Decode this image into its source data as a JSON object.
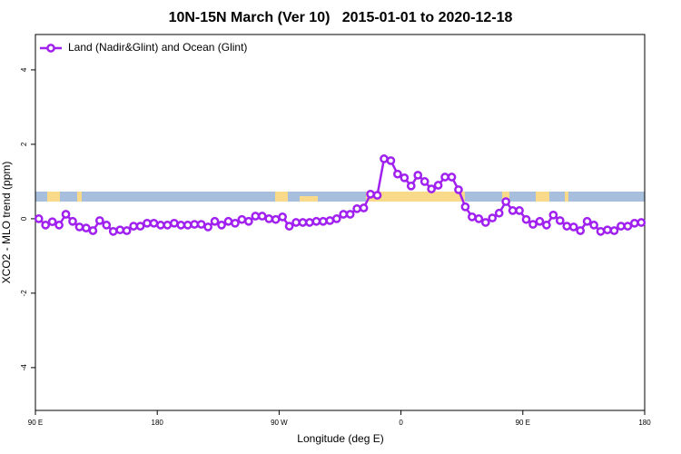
{
  "chart_data": {
    "type": "line",
    "title": "10N-15N March (Ver 10)   2015-01-01 to 2020-12-18",
    "x_label": "Longitude (deg E)",
    "y_label": "XCO2 - MLO trend (ppm)",
    "xlim": [
      90,
      540
    ],
    "xticks": [
      {
        "value": 90,
        "label": "90 E"
      },
      180,
      {
        "value": 270,
        "label": "90 W"
      },
      {
        "value": 360,
        "label": "0"
      },
      {
        "value": 450,
        "label": "90 E"
      },
      {
        "value": 540,
        "label": "180"
      }
    ],
    "ylim": [
      -5.15,
      4.95
    ],
    "yticks": [
      -4,
      -2,
      0,
      2,
      4
    ],
    "legend": "top-left",
    "x": [
      92.5,
      97.5,
      102.5,
      107.5,
      112.5,
      117.5,
      122.5,
      127.5,
      132.5,
      137.5,
      142.5,
      147.5,
      152.5,
      157.5,
      162.5,
      167.5,
      172.5,
      177.5,
      182.5,
      187.5,
      192.5,
      197.5,
      202.5,
      207.5,
      212.5,
      217.5,
      222.5,
      227.5,
      232.5,
      237.5,
      242.5,
      247.5,
      252.5,
      257.5,
      262.5,
      267.5,
      272.5,
      277.5,
      282.5,
      287.5,
      292.5,
      297.5,
      302.5,
      307.5,
      312.5,
      317.5,
      322.5,
      327.5,
      332.5,
      337.5,
      342.5,
      347.5,
      352.5,
      357.5,
      362.5,
      367.5,
      372.5,
      377.5,
      382.5,
      387.5,
      392.5,
      397.5,
      402.5,
      407.5,
      412.5,
      417.5,
      422.5,
      427.5,
      432.5,
      437.5,
      442.5,
      447.5,
      452.5,
      457.5,
      462.5,
      467.5,
      472.5,
      477.5,
      482.5,
      487.5,
      492.5,
      497.5,
      502.5,
      507.5,
      512.5,
      517.5,
      522.5,
      527.5,
      532.5,
      537.5
    ],
    "series": [
      {
        "name": "Land (Nadir&Glint) and Ocean (Glint)",
        "color": "#a020f0",
        "values": [
          0.0,
          -0.17,
          -0.08,
          -0.17,
          0.12,
          -0.07,
          -0.22,
          -0.25,
          -0.32,
          -0.05,
          -0.17,
          -0.34,
          -0.3,
          -0.32,
          -0.2,
          -0.2,
          -0.12,
          -0.12,
          -0.17,
          -0.17,
          -0.12,
          -0.17,
          -0.17,
          -0.15,
          -0.15,
          -0.22,
          -0.07,
          -0.17,
          -0.07,
          -0.12,
          -0.02,
          -0.07,
          0.07,
          0.07,
          0,
          -0.02,
          0.05,
          -0.2,
          -0.1,
          -0.1,
          -0.1,
          -0.07,
          -0.07,
          -0.05,
          0,
          0.12,
          0.12,
          0.27,
          0.29,
          0.66,
          0.63,
          1.61,
          1.56,
          1.2,
          1.1,
          0.88,
          1.17,
          1.0,
          0.8,
          0.9,
          1.12,
          1.12,
          0.78,
          0.32,
          0.05,
          0,
          -0.1,
          0.02,
          0.15,
          0.46,
          0.22,
          0.22,
          -0.02,
          -0.15,
          -0.07,
          -0.17,
          0.1,
          -0.05,
          -0.2,
          -0.22,
          -0.32,
          -0.07,
          -0.17,
          -0.34,
          -0.3,
          -0.32,
          -0.2,
          -0.2,
          -0.12,
          -0.1
        ]
      }
    ]
  }
}
